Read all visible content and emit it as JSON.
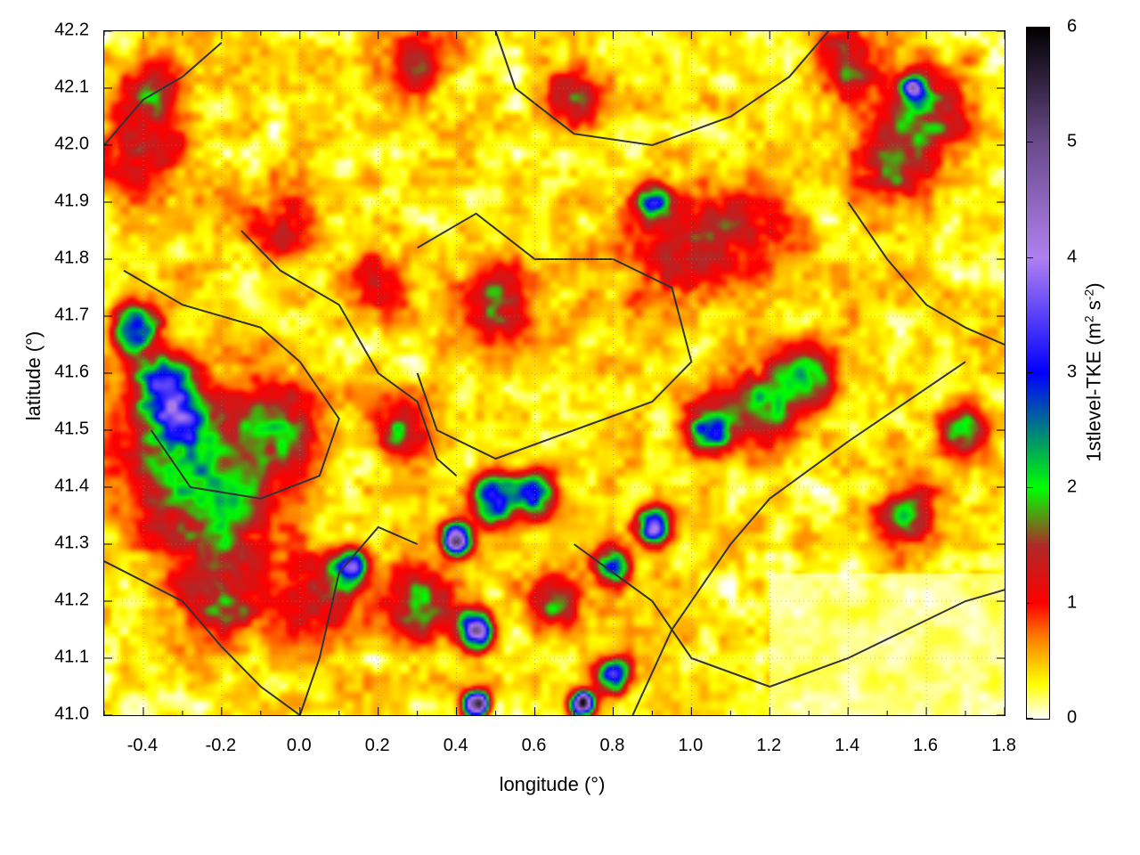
{
  "chart_data": {
    "type": "heatmap",
    "xlabel": "longitude (°)",
    "ylabel": "latitude (°)",
    "xlim": [
      -0.5,
      1.8
    ],
    "ylim": [
      41.0,
      42.2
    ],
    "xticks": [
      "-0.4",
      "-0.2",
      "0.0",
      "0.2",
      "0.4",
      "0.6",
      "0.8",
      "1.0",
      "1.2",
      "1.4",
      "1.6",
      "1.8"
    ],
    "yticks": [
      "41.0",
      "41.1",
      "41.2",
      "41.3",
      "41.4",
      "41.5",
      "41.6",
      "41.7",
      "41.8",
      "41.9",
      "42.0",
      "42.1",
      "42.2"
    ],
    "grid": true,
    "colorbar": {
      "label_main": "1stlevel-TKE (m",
      "label_sup1": "2",
      "label_mid": " s",
      "label_sup2": "-2",
      "label_end": ")",
      "range": [
        0,
        6
      ],
      "ticks": [
        "0",
        "1",
        "2",
        "3",
        "4",
        "5",
        "6"
      ],
      "stops": [
        [
          0,
          "#ffffff"
        ],
        [
          0.3,
          "#ffff00"
        ],
        [
          0.7,
          "#ff8000"
        ],
        [
          1.0,
          "#ff0000"
        ],
        [
          1.5,
          "#b02828"
        ],
        [
          2.0,
          "#00ff00"
        ],
        [
          2.5,
          "#008080"
        ],
        [
          3.0,
          "#0000ff"
        ],
        [
          4.0,
          "#b080f0"
        ],
        [
          5.0,
          "#6a4a8a"
        ],
        [
          6.0,
          "#000000"
        ]
      ]
    },
    "background_level": 0.35,
    "hotspots": [
      [
        -0.3,
        41.45,
        1.3,
        0.12
      ],
      [
        -0.2,
        41.35,
        1.2,
        0.1
      ],
      [
        -0.05,
        41.5,
        1.4,
        0.08
      ],
      [
        -0.42,
        41.68,
        2.9,
        0.04
      ],
      [
        -0.35,
        41.58,
        2.6,
        0.05
      ],
      [
        -0.3,
        41.52,
        2.0,
        0.05
      ],
      [
        -0.4,
        42.0,
        1.1,
        0.08
      ],
      [
        -0.38,
        42.1,
        1.0,
        0.05
      ],
      [
        -0.05,
        41.85,
        1.0,
        0.06
      ],
      [
        0.5,
        41.72,
        1.2,
        0.07
      ],
      [
        0.2,
        41.75,
        0.9,
        0.06
      ],
      [
        0.27,
        41.5,
        1.4,
        0.05
      ],
      [
        0.4,
        41.31,
        4.8,
        0.025
      ],
      [
        0.5,
        41.38,
        3.0,
        0.04
      ],
      [
        0.6,
        41.39,
        2.6,
        0.035
      ],
      [
        0.45,
        41.15,
        4.2,
        0.03
      ],
      [
        0.13,
        41.26,
        3.0,
        0.03
      ],
      [
        0.45,
        41.02,
        5.6,
        0.02
      ],
      [
        0.72,
        41.02,
        5.6,
        0.02
      ],
      [
        0.8,
        41.07,
        3.0,
        0.03
      ],
      [
        0.9,
        41.33,
        3.2,
        0.03
      ],
      [
        0.8,
        41.26,
        2.6,
        0.03
      ],
      [
        0.65,
        41.2,
        1.6,
        0.05
      ],
      [
        1.05,
        41.5,
        2.8,
        0.04
      ],
      [
        1.2,
        41.55,
        1.5,
        0.07
      ],
      [
        1.3,
        41.6,
        1.3,
        0.05
      ],
      [
        0.3,
        41.2,
        1.7,
        0.06
      ],
      [
        0.05,
        41.2,
        1.1,
        0.07
      ],
      [
        -0.2,
        41.2,
        1.1,
        0.08
      ],
      [
        0.9,
        41.9,
        2.1,
        0.03
      ],
      [
        1.57,
        42.1,
        3.0,
        0.02
      ],
      [
        1.6,
        42.05,
        1.5,
        0.08
      ],
      [
        1.4,
        42.15,
        1.2,
        0.06
      ],
      [
        0.7,
        42.08,
        1.1,
        0.05
      ],
      [
        0.95,
        41.82,
        1.0,
        0.1
      ],
      [
        1.55,
        41.35,
        1.5,
        0.05
      ],
      [
        1.7,
        41.5,
        1.9,
        0.04
      ],
      [
        1.5,
        41.95,
        1.1,
        0.06
      ],
      [
        0.3,
        42.15,
        1.0,
        0.06
      ],
      [
        1.15,
        41.85,
        0.9,
        0.08
      ]
    ],
    "contours": [
      [
        [
          -0.5,
          42.0
        ],
        [
          -0.4,
          42.08
        ],
        [
          -0.3,
          42.12
        ],
        [
          -0.2,
          42.18
        ]
      ],
      [
        [
          -0.45,
          41.78
        ],
        [
          -0.3,
          41.72
        ],
        [
          -0.1,
          41.68
        ],
        [
          0.0,
          41.62
        ],
        [
          0.1,
          41.52
        ],
        [
          0.05,
          41.42
        ],
        [
          -0.1,
          41.38
        ],
        [
          -0.28,
          41.4
        ],
        [
          -0.38,
          41.5
        ]
      ],
      [
        [
          -0.15,
          41.85
        ],
        [
          -0.05,
          41.78
        ],
        [
          0.1,
          41.72
        ],
        [
          0.2,
          41.6
        ],
        [
          0.3,
          41.55
        ],
        [
          0.35,
          41.45
        ],
        [
          0.4,
          41.42
        ]
      ],
      [
        [
          0.3,
          41.82
        ],
        [
          0.45,
          41.88
        ],
        [
          0.6,
          41.8
        ],
        [
          0.8,
          41.8
        ],
        [
          0.95,
          41.75
        ],
        [
          1.0,
          41.62
        ],
        [
          0.9,
          41.55
        ],
        [
          0.7,
          41.5
        ],
        [
          0.5,
          41.45
        ],
        [
          0.35,
          41.5
        ],
        [
          0.3,
          41.6
        ]
      ],
      [
        [
          0.7,
          41.3
        ],
        [
          0.9,
          41.2
        ],
        [
          1.0,
          41.1
        ],
        [
          1.2,
          41.05
        ],
        [
          1.4,
          41.1
        ],
        [
          1.55,
          41.15
        ],
        [
          1.7,
          41.2
        ],
        [
          1.8,
          41.22
        ]
      ],
      [
        [
          0.85,
          41.0
        ],
        [
          0.95,
          41.15
        ],
        [
          1.1,
          41.3
        ],
        [
          1.2,
          41.38
        ],
        [
          1.4,
          41.48
        ],
        [
          1.55,
          41.55
        ],
        [
          1.7,
          41.62
        ]
      ],
      [
        [
          0.5,
          42.2
        ],
        [
          0.55,
          42.1
        ],
        [
          0.7,
          42.02
        ],
        [
          0.9,
          42.0
        ],
        [
          1.1,
          42.05
        ],
        [
          1.25,
          42.12
        ],
        [
          1.35,
          42.2
        ]
      ],
      [
        [
          1.4,
          41.9
        ],
        [
          1.5,
          41.8
        ],
        [
          1.6,
          41.72
        ],
        [
          1.7,
          41.68
        ],
        [
          1.8,
          41.65
        ]
      ],
      [
        [
          0.0,
          41.0
        ],
        [
          0.05,
          41.1
        ],
        [
          0.1,
          41.25
        ],
        [
          0.2,
          41.33
        ],
        [
          0.3,
          41.3
        ]
      ],
      [
        [
          -0.5,
          41.27
        ],
        [
          -0.3,
          41.2
        ],
        [
          -0.2,
          41.12
        ],
        [
          -0.1,
          41.05
        ],
        [
          0.0,
          41.0
        ]
      ]
    ]
  }
}
